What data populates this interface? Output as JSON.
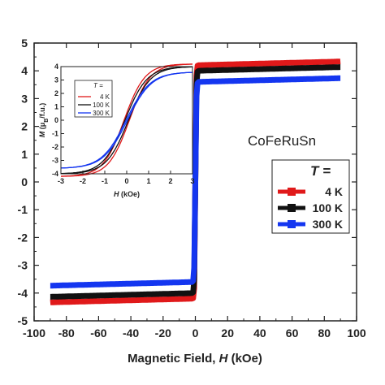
{
  "chart_data": {
    "type": "line",
    "annotation": "CoFeRuSn",
    "xlabel": "Magnetic Field, H (kOe)",
    "xlabel_parts": [
      "Magnetic Field, ",
      "H",
      " (kOe)"
    ],
    "ylabel": "",
    "xlim": [
      -100,
      100
    ],
    "ylim": [
      -5,
      5
    ],
    "xticks": [
      "-100",
      "-80",
      "-60",
      "-40",
      "-20",
      "0",
      "20",
      "40",
      "60",
      "80",
      "100"
    ],
    "yticks": [
      "-5",
      "-4",
      "-3",
      "-2",
      "-1",
      "0",
      "1",
      "2",
      "3",
      "4",
      "5"
    ],
    "legend": {
      "title": "T =",
      "placement": "right"
    },
    "series": [
      {
        "name": "4 K",
        "color": "#e0191a",
        "saturation": 4.2,
        "field_scale": 0.45,
        "x_range": [
          -90,
          90
        ]
      },
      {
        "name": "100 K",
        "color": "#111111",
        "saturation": 4.0,
        "field_scale": 0.5,
        "x_range": [
          -90,
          90
        ]
      },
      {
        "name": "300 K",
        "color": "#1436f0",
        "saturation": 3.6,
        "field_scale": 0.55,
        "x_range": [
          -90,
          90
        ]
      }
    ],
    "inset": {
      "xlabel_parts": [
        "H",
        " (kOe)"
      ],
      "ylabel_parts": [
        "M",
        " (μ",
        "B",
        "/f.u.)"
      ],
      "xlim": [
        -3,
        3
      ],
      "ylim": [
        -4,
        4
      ],
      "xticks": [
        "-3",
        "-2",
        "-1",
        "0",
        "1",
        "2",
        "3"
      ],
      "yticks": [
        "-4",
        "-3",
        "-2",
        "-1",
        "0",
        "1",
        "2",
        "3",
        "4"
      ],
      "legend_title": "T =",
      "series": [
        {
          "name": "4 K",
          "color": "#e0191a"
        },
        {
          "name": "100 K",
          "color": "#111111"
        },
        {
          "name": "300 K",
          "color": "#1436f0"
        }
      ]
    }
  }
}
